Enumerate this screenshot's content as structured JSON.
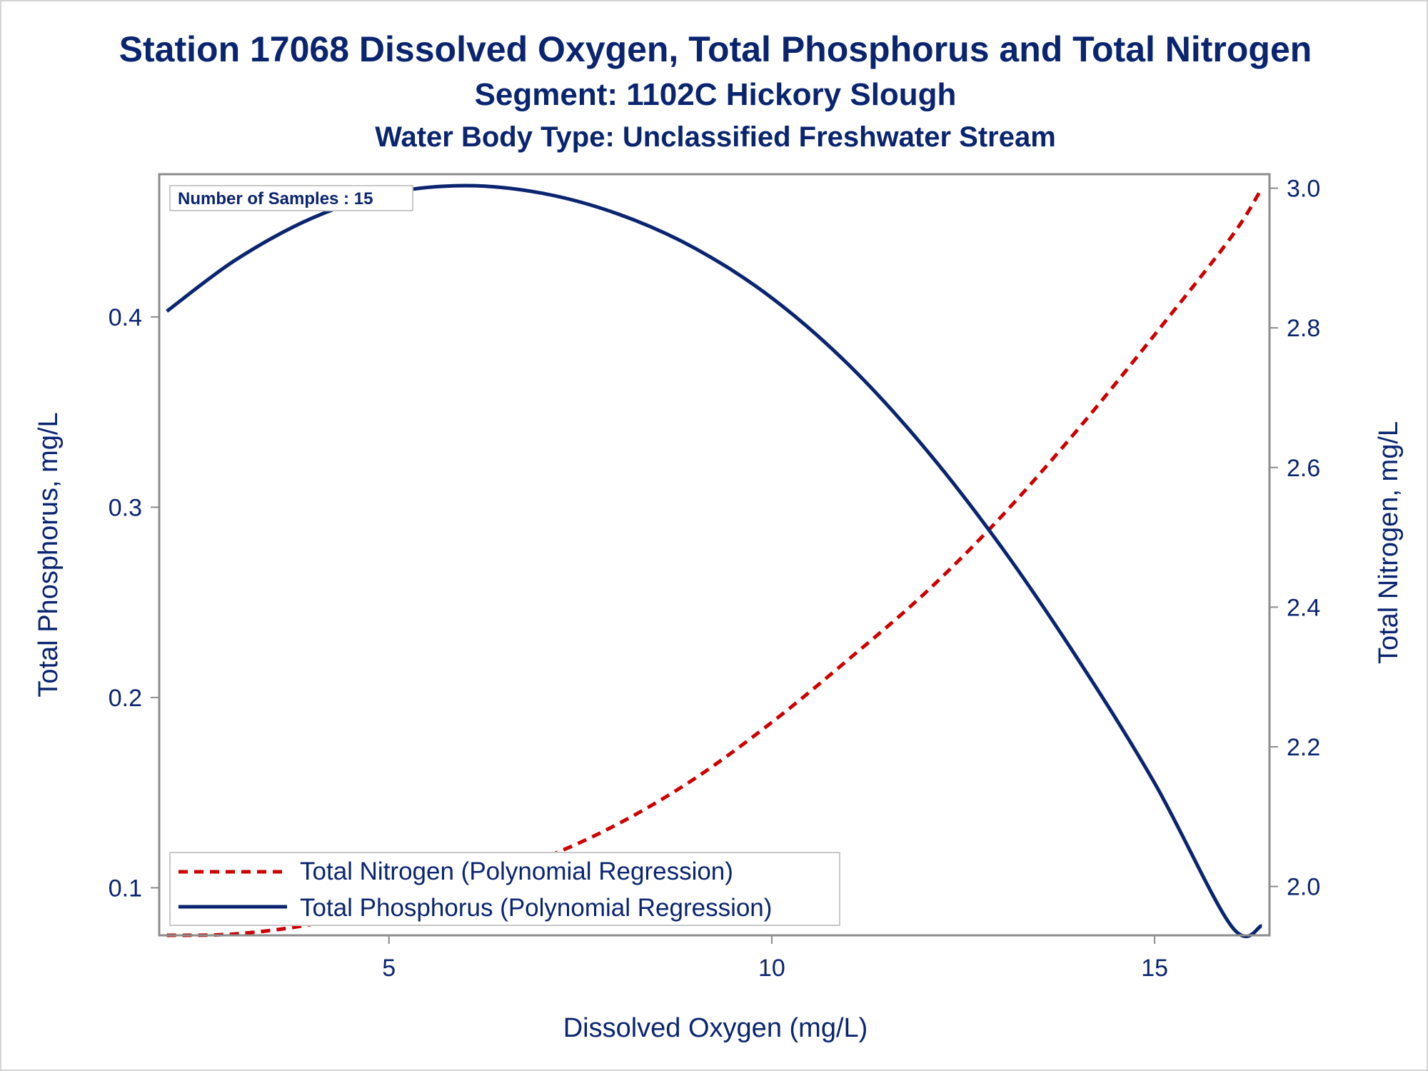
{
  "chart_data": {
    "type": "line",
    "title": "Station 17068  Dissolved Oxygen, Total Phosphorus and Total Nitrogen",
    "subtitle": "Segment: 1102C  Hickory Slough",
    "subtitle2": "Water Body Type: Unclassified Freshwater Stream",
    "xlabel": "Dissolved Oxygen (mg/L)",
    "ylabel": "Total Phosphorus, mg/L",
    "y2label": "Total Nitrogen, mg/L",
    "xlim": [
      2,
      16.5
    ],
    "ylim": [
      0.075,
      0.475
    ],
    "y2lim": [
      1.93,
      3.02
    ],
    "xticks": [
      5,
      10,
      15
    ],
    "yticks": [
      0.1,
      0.2,
      0.3,
      0.4
    ],
    "y2ticks": [
      2.0,
      2.2,
      2.4,
      2.6,
      2.8,
      3.0
    ],
    "xtick_labels": [
      "5",
      "10",
      "15"
    ],
    "ytick_labels": [
      "0.1",
      "0.2",
      "0.3",
      "0.4"
    ],
    "y2tick_labels": [
      "2.0",
      "2.2",
      "2.4",
      "2.6",
      "2.8",
      "3.0"
    ],
    "inset_label": "Number of Samples : 15",
    "legend_position": "bottom-left",
    "grid": false,
    "series": [
      {
        "name": "Total Nitrogen (Polynomial Regression)",
        "axis": "right",
        "style": "dashed",
        "color": "#cc0000",
        "x": [
          2.1,
          3.0,
          4.0,
          5.0,
          6.0,
          7.0,
          8.0,
          9.0,
          10.0,
          11.0,
          12.0,
          13.0,
          14.0,
          15.0,
          16.0,
          16.4
        ],
        "y": [
          1.93,
          1.932,
          1.946,
          1.972,
          2.005,
          2.04,
          2.09,
          2.155,
          2.235,
          2.325,
          2.42,
          2.53,
          2.655,
          2.79,
          2.93,
          3.0
        ]
      },
      {
        "name": "Total Phosphorus (Polynomial Regression)",
        "axis": "left",
        "style": "solid",
        "color": "#0a2470",
        "x": [
          2.1,
          3.0,
          4.0,
          5.0,
          6.0,
          7.0,
          8.0,
          9.0,
          10.0,
          11.0,
          12.0,
          13.0,
          14.0,
          15.0,
          16.0,
          16.4
        ],
        "y": [
          0.403,
          0.43,
          0.452,
          0.465,
          0.469,
          0.465,
          0.454,
          0.436,
          0.41,
          0.375,
          0.331,
          0.279,
          0.22,
          0.155,
          0.08,
          0.08
        ]
      }
    ]
  },
  "colors": {
    "text": "#0a2470",
    "axis": "#8c8c8c",
    "nitrogen": "#cc0000",
    "phosphorus": "#0a2470"
  }
}
